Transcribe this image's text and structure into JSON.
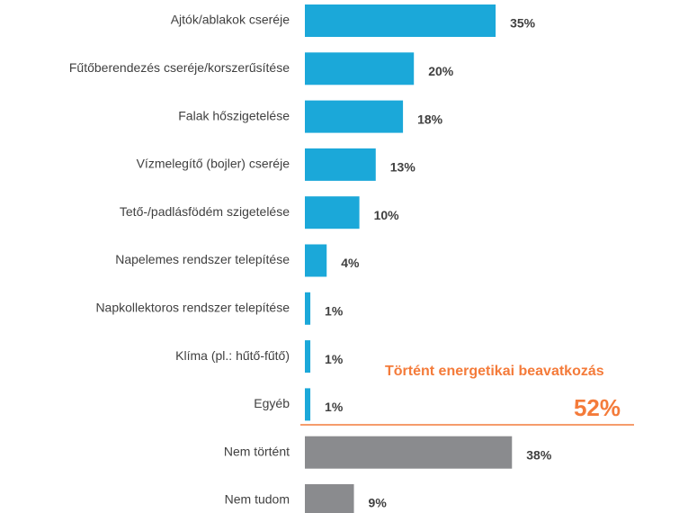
{
  "chart_data": {
    "type": "bar",
    "orientation": "horizontal",
    "categories": [
      "Ajtók/ablakok cseréje",
      "Fűtőberendezés cseréje/korszerűsítése",
      "Falak hőszigetelése",
      "Vízmelegítő (bojler) cseréje",
      "Tető-/padlásfödém szigetelése",
      "Napelemes rendszer telepítése",
      "Napkollektoros rendszer telepítése",
      "Klíma (pl.: hűtő-fűtő)",
      "Egyéb",
      "Nem történt",
      "Nem tudom"
    ],
    "values": [
      35,
      20,
      18,
      13,
      10,
      4,
      1,
      1,
      1,
      38,
      9
    ],
    "value_labels": [
      "35%",
      "20%",
      "18%",
      "13%",
      "10%",
      "4%",
      "1%",
      "1%",
      "1%",
      "38%",
      "9%"
    ],
    "colors": [
      "#1ba8d9",
      "#1ba8d9",
      "#1ba8d9",
      "#1ba8d9",
      "#1ba8d9",
      "#1ba8d9",
      "#1ba8d9",
      "#1ba8d9",
      "#1ba8d9",
      "#8a8b8e",
      "#8a8b8e"
    ],
    "annotation": {
      "text": "Történt energetikai beavatkozás",
      "value": 52,
      "label": "52%",
      "color": "#f47b3a"
    }
  }
}
